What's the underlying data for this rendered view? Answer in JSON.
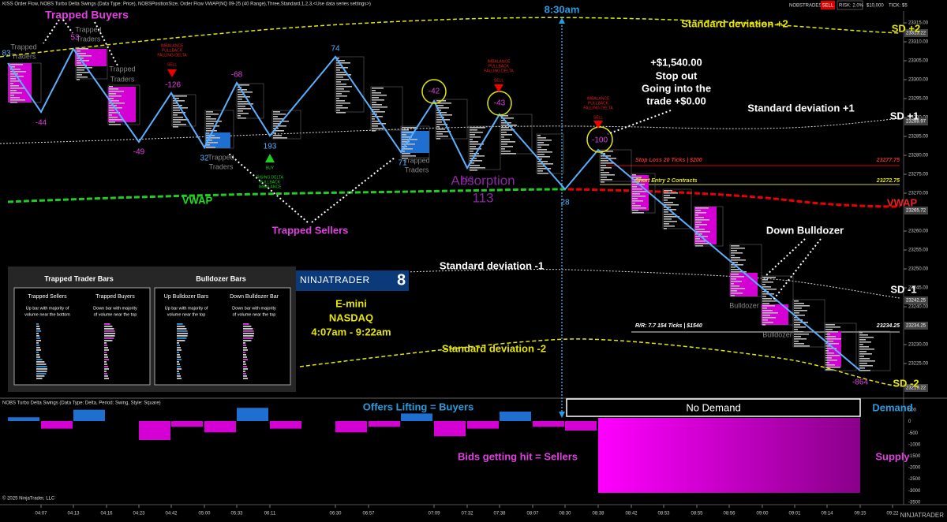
{
  "header": {
    "indicators": "KISS Order Flow, NOBS Turbo Delta Swings (Data Type: Price), NOBSPositionSize, Order Flow VWAP(NQ 09-25 (40 Range),Three,Standard,1,2,3,<Use data series settings>)",
    "account": "NOBSTRADES",
    "side": "SELL",
    "risk": "RISK: 2.0%",
    "balance": "$10,000",
    "tick": "TICK: $5"
  },
  "price_axis": {
    "ticks": [
      "23315.00",
      "23310.00",
      "23305.00",
      "23300.00",
      "23295.00",
      "23290.00",
      "23285.00",
      "23280.00",
      "23275.00",
      "23270.00",
      "23260.00",
      "23255.00",
      "23250.00",
      "23245.00",
      "23240.00",
      "23230.00",
      "23225.00"
    ],
    "markers": [
      "23313.22",
      "23288.97",
      "23265.72",
      "23242.25",
      "23234.25",
      "23219.22"
    ]
  },
  "time_axis": {
    "ticks": [
      "04:07",
      "04:13",
      "04:16",
      "04:23",
      "04:42",
      "05:00",
      "05:33",
      "06:11",
      "06:30",
      "06:57",
      "07:09",
      "07:32",
      "07:38",
      "08:07",
      "08:30",
      "08:38",
      "08:42",
      "08:53",
      "08:55",
      "08:56",
      "09:00",
      "09:01",
      "09:14",
      "09:15",
      "09:22"
    ]
  },
  "swings": [
    "83",
    "-44",
    "53",
    "-49",
    "-126",
    "32",
    "-68",
    "193",
    "74",
    "71",
    "-42",
    "113",
    "-43",
    "28",
    "-100",
    "-864"
  ],
  "annotations": {
    "trapped_buyers": "Trapped Buyers",
    "trapped_traders": "Trapped",
    "trapped_traders_2": "Traders",
    "trapped_sellers": "Trapped Sellers",
    "vwap_left": "VWAP",
    "vwap_right": "VWAP",
    "absorption": "Absorption",
    "absorption_value": "113",
    "time_830": "8:30am",
    "sd_plus2": "Standard deviation +2",
    "sd_plus2_short": "SD +2",
    "sd_plus1": "Standard deviation +1",
    "sd_plus1_short": "SD +1",
    "sd_minus1": "Standard deviation -1",
    "sd_minus1_short": "SD -1",
    "sd_minus2": "Standard deviation -2",
    "sd_minus2_short": "SD -2",
    "down_bulldozer": "Down Bulldozer",
    "bulldozer": "Bulldozer",
    "instrument": "E-mini",
    "index": "NASDAQ",
    "session": "4:07am - 9:22am",
    "imbalance": "IMBALANCE",
    "pullback": "PULLBACK",
    "falling_delta": "FALLING DELTA",
    "sell": "SELL",
    "buy": "BUY",
    "rising_delta": "RISING DELTA"
  },
  "trade": {
    "pnl": "+$1,540.00",
    "stop_out": "Stop out",
    "going": "Going into the",
    "trade_pnl": "trade +$0.00",
    "stop_loss": "Stop Loss   20 Ticks | $200",
    "stop_price": "23277.75",
    "short_entry": "Short Entry   2 Contracts",
    "entry_price": "23272.75",
    "rr": "R/R: 7.7     154 Ticks | $1540",
    "target_price": "23234.25"
  },
  "legend": {
    "trapped_title": "Trapped Trader Bars",
    "bulldozer_title": "Bulldozer Bars",
    "trapped_sellers": "Trapped Sellers",
    "trapped_buyers": "Trapped Buyers",
    "up_bulldozer": "Up Bulldozer Bars",
    "down_bulldozer": "Down Bulldozer Bar",
    "ts_desc_1": "Up bar with majority of",
    "ts_desc_2": "volume near the bottom",
    "tb_desc_1": "Down bar with majority",
    "tb_desc_2": "of volume near the top",
    "ub_desc_1": "Up bar with majority of",
    "ub_desc_2": "volume near the top",
    "db_desc_1": "Down bar with majority",
    "db_desc_2": "of volume near the top"
  },
  "logo": {
    "brand": "NINJATRADER",
    "version": "8"
  },
  "delta_panel": {
    "title": "NOBS Turbo Delta Swings (Data Type: Delta, Period: Swing, Style: Square)",
    "ticks": [
      "500",
      "0",
      "-500",
      "-1000",
      "-1500",
      "-2000",
      "-2500",
      "-3000",
      "-3500"
    ],
    "offers": "Offers Lifting = Buyers",
    "bids": "Bids getting hit = Sellers",
    "no_demand": "No Demand",
    "demand": "Demand",
    "supply": "Supply"
  },
  "footer": {
    "copyright": "© 2025 NinjaTrader, LLC",
    "brand": "NINJATRADER"
  }
}
